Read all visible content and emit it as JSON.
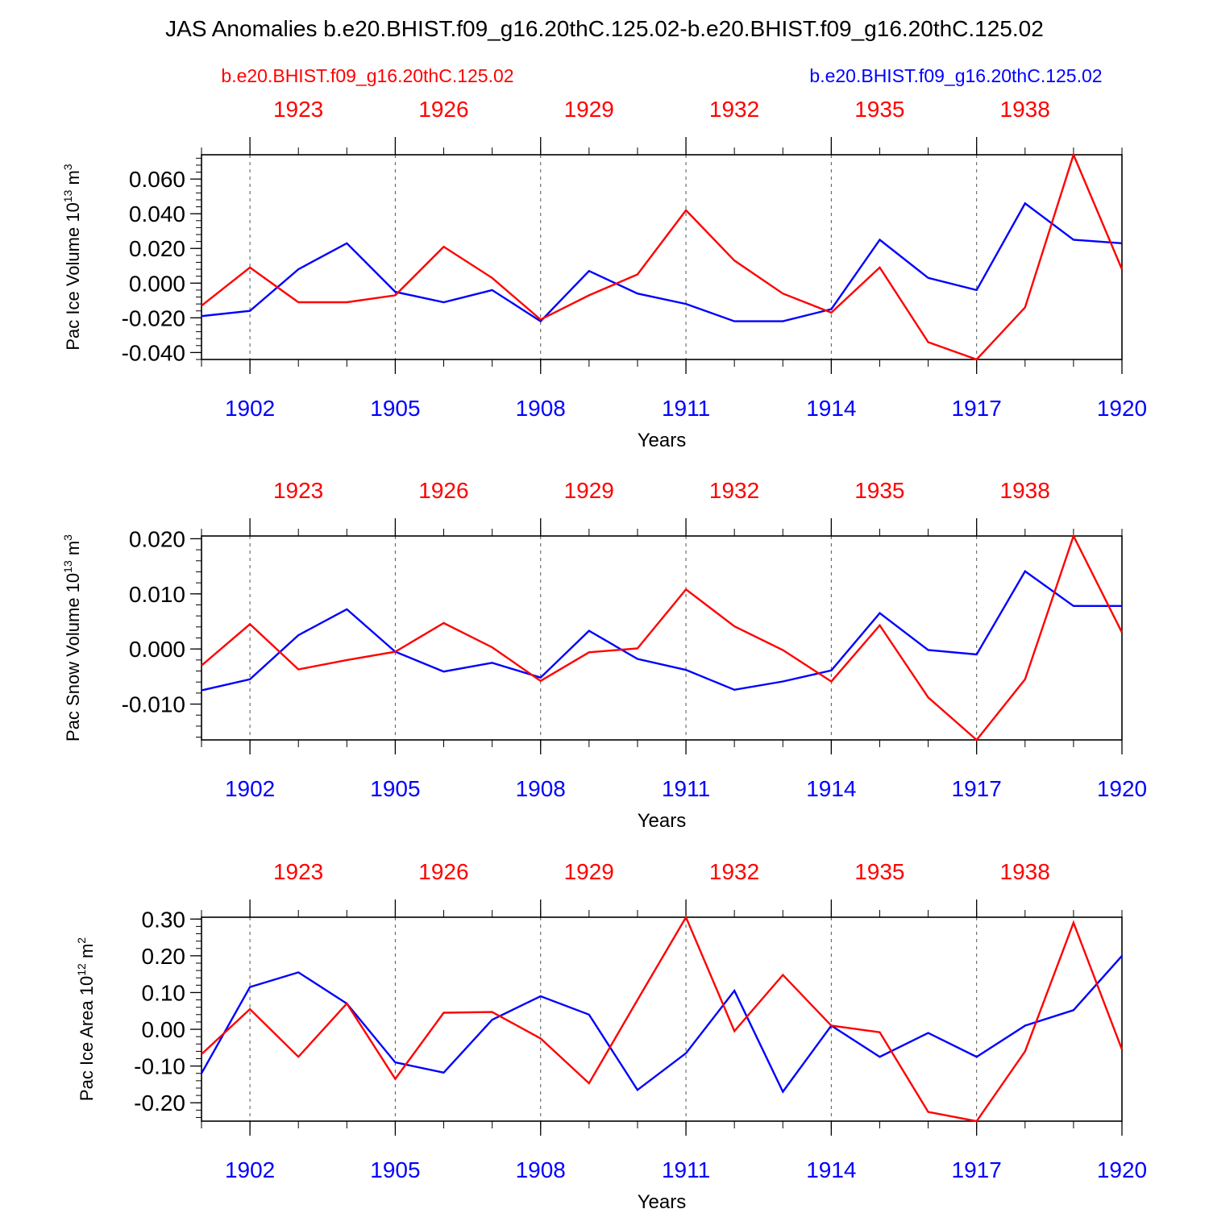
{
  "title": "JAS Anomalies b.e20.BHIST.f09_g16.20thC.125.02-b.e20.BHIST.f09_g16.20thC.125.02",
  "legend": {
    "left": "b.e20.BHIST.f09_g16.20thC.125.02",
    "right": "b.e20.BHIST.f09_g16.20thC.125.02"
  },
  "colors": {
    "red": "#ff0000",
    "blue": "#0000ff",
    "axis": "#000000",
    "grid": "#555555"
  },
  "chart_data": [
    {
      "type": "line",
      "ylabel": "Pac Ice Volume 10",
      "ylabel_exp": "13",
      "ylabel_unit": " m",
      "ylabel_unit_exp": "3",
      "xlabel": "Years",
      "x": [
        1901,
        1902,
        1903,
        1904,
        1905,
        1906,
        1907,
        1908,
        1909,
        1910,
        1911,
        1912,
        1913,
        1914,
        1915,
        1916,
        1917,
        1918,
        1919,
        1920
      ],
      "xlim": [
        1901,
        1920
      ],
      "ylim": [
        -0.044,
        0.074
      ],
      "yticks": [
        -0.04,
        -0.02,
        0.0,
        0.02,
        0.04,
        0.06
      ],
      "ytick_labels": [
        "-0.040",
        "-0.020",
        "0.000",
        "0.020",
        "0.040",
        "0.060"
      ],
      "yminor_step": 0.004,
      "bottom_ticks": [
        1902,
        1905,
        1908,
        1911,
        1914,
        1917,
        1920
      ],
      "bottom_tick_labels": [
        "1902",
        "1905",
        "1908",
        "1911",
        "1914",
        "1917",
        "1920"
      ],
      "top_ticks": [
        1902,
        1905,
        1908,
        1911,
        1914,
        1917
      ],
      "top_tick_labels": [
        "1923",
        "1926",
        "1929",
        "1932",
        "1935",
        "1938"
      ],
      "grid_x": [
        1902,
        1905,
        1908,
        1911,
        1914,
        1917
      ],
      "series": [
        {
          "name": "b.e20.BHIST.f09_g16.20thC.125.02",
          "color": "#0000ff",
          "values": [
            -0.019,
            -0.016,
            0.008,
            0.023,
            -0.005,
            -0.011,
            -0.004,
            -0.022,
            0.007,
            -0.006,
            -0.012,
            -0.022,
            -0.022,
            -0.015,
            0.025,
            0.003,
            -0.004,
            0.046,
            0.025,
            0.023
          ]
        },
        {
          "name": "b.e20.BHIST.f09_g16.20thC.125.02",
          "color": "#ff0000",
          "values": [
            -0.013,
            0.009,
            -0.011,
            -0.011,
            -0.007,
            0.021,
            0.003,
            -0.021,
            -0.007,
            0.005,
            0.042,
            0.013,
            -0.006,
            -0.017,
            0.009,
            -0.034,
            -0.044,
            -0.014,
            0.074,
            0.008
          ]
        }
      ]
    },
    {
      "type": "line",
      "ylabel": "Pac Snow Volume 10",
      "ylabel_exp": "13",
      "ylabel_unit": " m",
      "ylabel_unit_exp": "3",
      "xlabel": "Years",
      "x": [
        1901,
        1902,
        1903,
        1904,
        1905,
        1906,
        1907,
        1908,
        1909,
        1910,
        1911,
        1912,
        1913,
        1914,
        1915,
        1916,
        1917,
        1918,
        1919,
        1920
      ],
      "xlim": [
        1901,
        1920
      ],
      "ylim": [
        -0.0165,
        0.0205
      ],
      "yticks": [
        -0.01,
        0.0,
        0.01,
        0.02
      ],
      "ytick_labels": [
        "-0.010",
        "0.000",
        "0.010",
        "0.020"
      ],
      "yminor_step": 0.002,
      "bottom_ticks": [
        1902,
        1905,
        1908,
        1911,
        1914,
        1917,
        1920
      ],
      "bottom_tick_labels": [
        "1902",
        "1905",
        "1908",
        "1911",
        "1914",
        "1917",
        "1920"
      ],
      "top_ticks": [
        1902,
        1905,
        1908,
        1911,
        1914,
        1917
      ],
      "top_tick_labels": [
        "1923",
        "1926",
        "1929",
        "1932",
        "1935",
        "1938"
      ],
      "grid_x": [
        1902,
        1905,
        1908,
        1911,
        1914,
        1917
      ],
      "series": [
        {
          "name": "b.e20.BHIST.f09_g16.20thC.125.02",
          "color": "#0000ff",
          "values": [
            -0.0075,
            -0.0055,
            0.0025,
            0.0072,
            -0.0005,
            -0.0041,
            -0.0025,
            -0.0052,
            0.0033,
            -0.0018,
            -0.0038,
            -0.0074,
            -0.0059,
            -0.0039,
            0.0065,
            -0.0002,
            -0.001,
            0.0141,
            0.0078,
            0.0078
          ]
        },
        {
          "name": "b.e20.BHIST.f09_g16.20thC.125.02",
          "color": "#ff0000",
          "values": [
            -0.003,
            0.0045,
            -0.0037,
            -0.002,
            -0.0005,
            0.0047,
            0.0003,
            -0.0058,
            -0.0006,
            0.0001,
            0.0108,
            0.0041,
            -0.0002,
            -0.0059,
            0.0043,
            -0.0088,
            -0.0165,
            -0.0055,
            0.0205,
            0.003
          ]
        }
      ]
    },
    {
      "type": "line",
      "ylabel": "Pac Ice Area 10",
      "ylabel_exp": "12",
      "ylabel_unit": " m",
      "ylabel_unit_exp": "2",
      "xlabel": "Years",
      "x": [
        1901,
        1902,
        1903,
        1904,
        1905,
        1906,
        1907,
        1908,
        1909,
        1910,
        1911,
        1912,
        1913,
        1914,
        1915,
        1916,
        1917,
        1918,
        1919,
        1920
      ],
      "xlim": [
        1901,
        1920
      ],
      "ylim": [
        -0.25,
        0.305
      ],
      "yticks": [
        -0.2,
        -0.1,
        0.0,
        0.1,
        0.2,
        0.3
      ],
      "ytick_labels": [
        "-0.20",
        "-0.10",
        "0.00",
        "0.10",
        "0.20",
        "0.30"
      ],
      "yminor_step": 0.02,
      "bottom_ticks": [
        1902,
        1905,
        1908,
        1911,
        1914,
        1917,
        1920
      ],
      "bottom_tick_labels": [
        "1902",
        "1905",
        "1908",
        "1911",
        "1914",
        "1917",
        "1920"
      ],
      "top_ticks": [
        1902,
        1905,
        1908,
        1911,
        1914,
        1917
      ],
      "top_tick_labels": [
        "1923",
        "1926",
        "1929",
        "1932",
        "1935",
        "1938"
      ],
      "grid_x": [
        1902,
        1905,
        1908,
        1911,
        1914,
        1917
      ],
      "series": [
        {
          "name": "b.e20.BHIST.f09_g16.20thC.125.02",
          "color": "#0000ff",
          "values": [
            -0.12,
            0.115,
            0.155,
            0.07,
            -0.09,
            -0.118,
            0.026,
            0.09,
            0.04,
            -0.165,
            -0.065,
            0.105,
            -0.17,
            0.01,
            -0.075,
            -0.01,
            -0.075,
            0.01,
            0.052,
            0.2
          ]
        },
        {
          "name": "b.e20.BHIST.f09_g16.20thC.125.02",
          "color": "#ff0000",
          "values": [
            -0.068,
            0.055,
            -0.075,
            0.07,
            -0.135,
            0.045,
            0.047,
            -0.025,
            -0.147,
            0.08,
            0.305,
            -0.005,
            0.148,
            0.01,
            -0.008,
            -0.225,
            -0.25,
            -0.06,
            0.29,
            -0.055
          ]
        }
      ]
    }
  ]
}
